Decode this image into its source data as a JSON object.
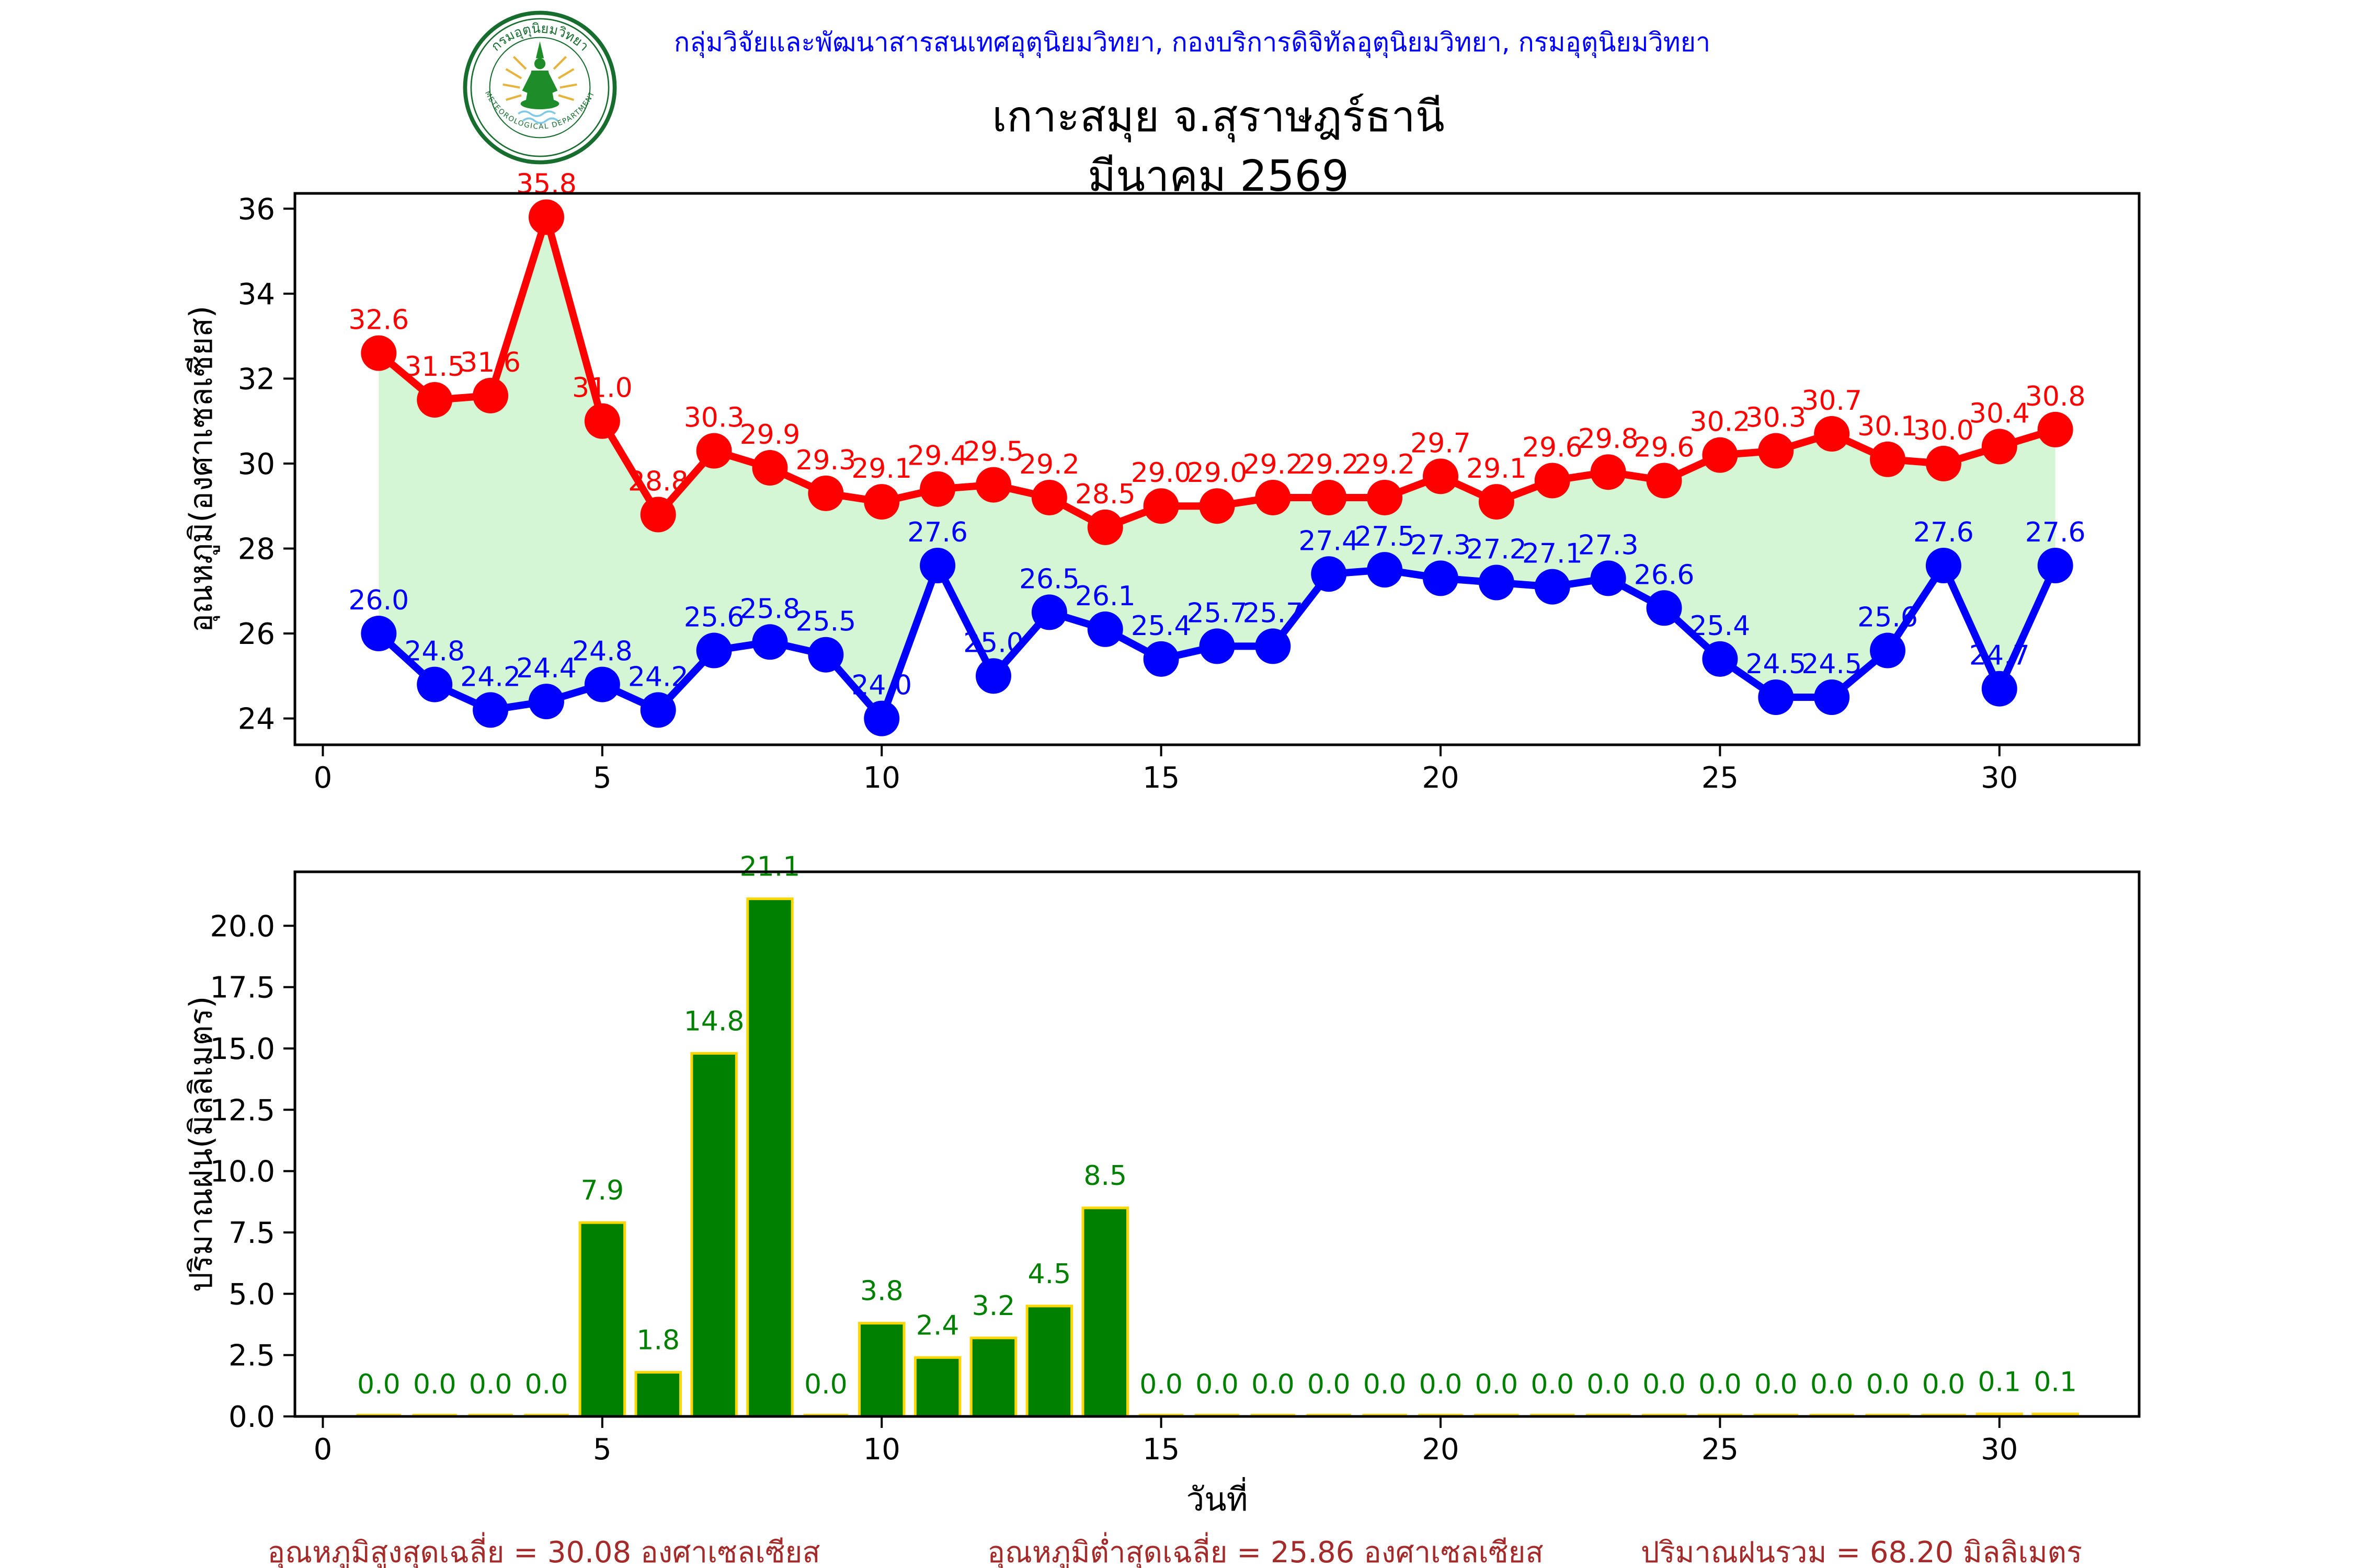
{
  "header": {
    "agency_line": "กลุ่มวิจัยและพัฒนาสารสนเทศอุตุนิยมวิทยา, กองบริการดิจิทัลอุตุนิยมวิทยา, กรมอุตุนิยมวิทยา"
  },
  "title": "เกาะสมุย จ.สุราษฎร์ธานี",
  "subtitle": "มีนาคม 2569",
  "logo": {
    "top_text": "กรมอุตุนิยมวิทยา",
    "bottom_text": "METEOROLOGICAL DEPARTMENT"
  },
  "footer": {
    "avg_max": "อุณหภูมิสูงสุดเฉลี่ย = 30.08 องศาเซลเซียส",
    "avg_min": "อุณหภูมิต่ำสุดเฉลี่ย = 25.86 องศาเซลเซียส",
    "total_rain": "ปริมาณฝนรวม = 68.20 มิลลิเมตร"
  },
  "colors": {
    "header_text": "#0000ff",
    "max_temp": "#ff0000",
    "min_temp": "#0000ff",
    "fill_between": "#d4f6d4",
    "bar_fill": "#008000",
    "bar_edge": "#ffd700",
    "bar_label": "#008000",
    "footer_text": "#a52a2a",
    "axis": "#000000"
  },
  "chart_data": [
    {
      "type": "line",
      "title": "",
      "x": [
        1,
        2,
        3,
        4,
        5,
        6,
        7,
        8,
        9,
        10,
        11,
        12,
        13,
        14,
        15,
        16,
        17,
        18,
        19,
        20,
        21,
        22,
        23,
        24,
        25,
        26,
        27,
        28,
        29,
        30,
        31
      ],
      "series": [
        {
          "name": "อุณหภูมิสูงสุด",
          "color": "#ff0000",
          "values": [
            32.6,
            31.5,
            31.6,
            35.8,
            31.0,
            28.8,
            30.3,
            29.9,
            29.3,
            29.1,
            29.4,
            29.5,
            29.2,
            28.5,
            29.0,
            29.0,
            29.2,
            29.2,
            29.2,
            29.7,
            29.1,
            29.6,
            29.8,
            29.6,
            30.2,
            30.3,
            30.7,
            30.1,
            30.0,
            30.4,
            30.8
          ]
        },
        {
          "name": "อุณหภูมิต่ำสุด",
          "color": "#0000ff",
          "values": [
            26.0,
            24.8,
            24.2,
            24.4,
            24.8,
            24.2,
            25.6,
            25.8,
            25.5,
            24.0,
            27.6,
            25.0,
            26.5,
            26.1,
            25.4,
            25.7,
            25.7,
            27.4,
            27.5,
            27.3,
            27.2,
            27.1,
            27.3,
            26.6,
            25.4,
            24.5,
            24.5,
            25.6,
            27.6,
            24.7,
            27.6
          ]
        }
      ],
      "fill_between": true,
      "xlabel": "",
      "ylabel": "อุณหภูมิ(องศาเซลเซียส)",
      "xticks": [
        0,
        5,
        10,
        15,
        20,
        25,
        30
      ],
      "yticks": [
        24,
        26,
        28,
        30,
        32,
        34,
        36
      ],
      "xlim": [
        -0.5,
        32.5
      ],
      "ylim": [
        23.38,
        36.36
      ],
      "grid": false,
      "legend": "none"
    },
    {
      "type": "bar",
      "title": "",
      "x": [
        1,
        2,
        3,
        4,
        5,
        6,
        7,
        8,
        9,
        10,
        11,
        12,
        13,
        14,
        15,
        16,
        17,
        18,
        19,
        20,
        21,
        22,
        23,
        24,
        25,
        26,
        27,
        28,
        29,
        30,
        31
      ],
      "values": [
        0.0,
        0.0,
        0.0,
        0.0,
        7.9,
        1.8,
        14.8,
        21.1,
        0.0,
        3.8,
        2.4,
        3.2,
        4.5,
        8.5,
        0.0,
        0.0,
        0.0,
        0.0,
        0.0,
        0.0,
        0.0,
        0.0,
        0.0,
        0.0,
        0.0,
        0.0,
        0.0,
        0.0,
        0.0,
        0.1,
        0.1
      ],
      "xlabel": "วันที่",
      "ylabel": "ปริมาณฝน(มิลลิเมตร)",
      "xticks": [
        0,
        5,
        10,
        15,
        20,
        25,
        30
      ],
      "yticks": [
        0.0,
        2.5,
        5.0,
        7.5,
        10.0,
        12.5,
        15.0,
        17.5,
        20.0
      ],
      "xlim": [
        -0.5,
        32.5
      ],
      "ylim": [
        0,
        22.2
      ],
      "grid": false,
      "legend": "none"
    }
  ]
}
